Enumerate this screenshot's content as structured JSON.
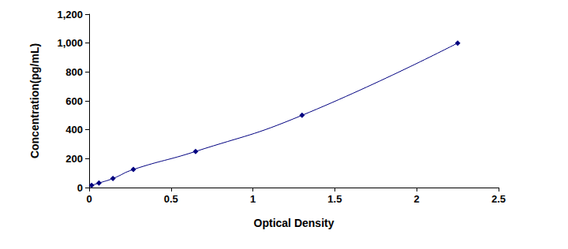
{
  "chart_data": {
    "type": "line",
    "x_label": "Optical Density",
    "y_label": "Concentration(pg/mL)",
    "x": [
      0.015,
      0.06,
      0.145,
      0.27,
      0.65,
      1.3,
      2.25
    ],
    "values": [
      15.6,
      31.25,
      62.5,
      125,
      250,
      500,
      1000
    ],
    "color": "#000080",
    "marker": "diamond",
    "line_style": "solid",
    "xlim": [
      0,
      2.5
    ],
    "xticks": [
      0,
      0.5,
      1,
      1.5,
      2,
      2.5
    ],
    "ylim": [
      0,
      1200
    ],
    "yticks": [
      0,
      200,
      400,
      600,
      800,
      1000,
      1200
    ],
    "grid": false
  }
}
